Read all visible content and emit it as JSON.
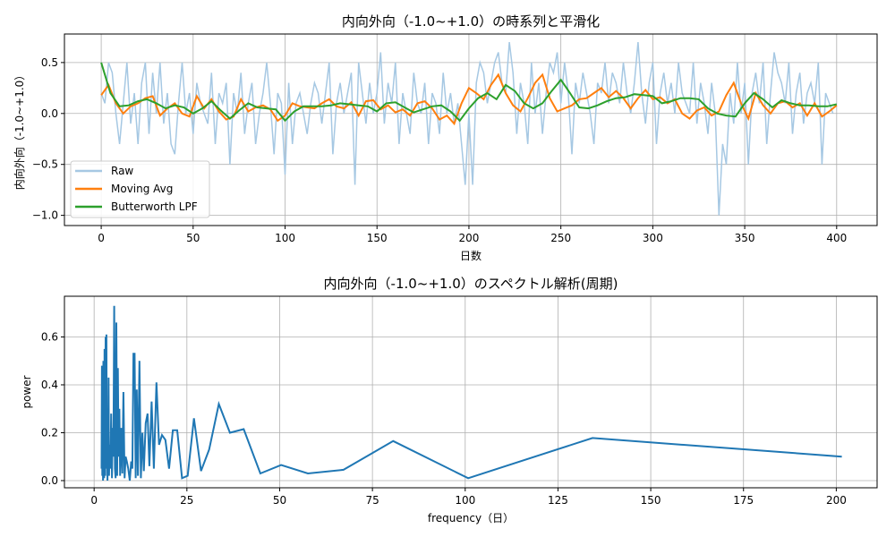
{
  "chart_data": [
    {
      "type": "line",
      "title": "内向外向（-1.0~+1.0）の時系列と平滑化",
      "xlabel": "日数",
      "ylabel": "内向外向（-1.0~+1.0）",
      "xlim": [
        -20,
        422
      ],
      "ylim": [
        -1.1,
        0.78
      ],
      "grid": true,
      "legend": "bottom-left",
      "xticks": [
        0,
        50,
        100,
        150,
        200,
        250,
        300,
        350,
        400
      ],
      "yticks": [
        -1.0,
        -0.5,
        0.0,
        0.5
      ],
      "ytick_labels": [
        "−1.0",
        "−0.5",
        "0.0",
        "0.5"
      ],
      "series": [
        {
          "name": "Raw",
          "color": "#a6c8e3",
          "x_step": 2,
          "values": [
            0.2,
            0.1,
            0.5,
            0.4,
            0.0,
            -0.3,
            0.1,
            0.5,
            -0.1,
            0.2,
            -0.3,
            0.3,
            0.5,
            -0.2,
            0.4,
            0.0,
            0.5,
            -0.1,
            0.2,
            -0.3,
            -0.4,
            0.1,
            0.5,
            0.0,
            0.2,
            -0.2,
            0.3,
            0.1,
            0.0,
            -0.1,
            0.4,
            -0.3,
            0.2,
            0.1,
            0.3,
            -0.5,
            0.2,
            0.0,
            0.4,
            -0.2,
            0.1,
            0.3,
            -0.3,
            0.0,
            0.2,
            0.5,
            0.1,
            -0.4,
            0.2,
            0.1,
            -0.6,
            0.3,
            -0.3,
            0.1,
            0.2,
            0.0,
            -0.2,
            0.1,
            0.3,
            0.2,
            -0.1,
            0.2,
            0.5,
            -0.4,
            0.1,
            0.3,
            0.0,
            0.2,
            0.4,
            -0.7,
            0.5,
            0.2,
            -0.1,
            0.3,
            0.0,
            0.2,
            0.6,
            -0.1,
            0.3,
            0.1,
            0.5,
            -0.3,
            0.2,
            0.0,
            -0.2,
            0.4,
            0.1,
            0.0,
            0.3,
            -0.3,
            0.2,
            0.1,
            -0.2,
            0.4,
            0.0,
            0.2,
            -0.1,
            0.1,
            -0.3,
            -0.7,
            0.0,
            -0.7,
            0.3,
            0.5,
            0.4,
            0.1,
            0.3,
            0.5,
            0.6,
            0.3,
            0.2,
            0.7,
            0.4,
            -0.2,
            0.3,
            0.1,
            -0.3,
            0.5,
            0.0,
            0.3,
            -0.2,
            0.2,
            0.5,
            0.4,
            0.6,
            0.1,
            0.5,
            0.2,
            -0.4,
            0.3,
            0.1,
            0.4,
            0.2,
            0.0,
            -0.3,
            0.3,
            0.2,
            0.5,
            0.1,
            0.4,
            0.3,
            0.1,
            0.5,
            0.2,
            0.0,
            0.3,
            0.7,
            0.2,
            -0.1,
            0.3,
            0.5,
            -0.3,
            0.2,
            0.4,
            0.1,
            0.3,
            0.0,
            0.5,
            0.2,
            0.1,
            0.0,
            0.5,
            -0.1,
            0.3,
            0.1,
            -0.2,
            0.3,
            0.0,
            -1.0,
            -0.3,
            -0.5,
            0.2,
            -0.1,
            0.5,
            0.0,
            0.3,
            -0.5,
            0.2,
            0.4,
            0.1,
            0.5,
            -0.3,
            0.2,
            0.6,
            0.4,
            0.3,
            0.1,
            0.5,
            -0.2,
            0.2,
            0.4,
            -0.1,
            0.2,
            0.3,
            0.1,
            0.5,
            -0.5,
            0.2,
            0.1,
            0.0
          ]
        },
        {
          "name": "Moving Avg",
          "color": "#ff7f0e",
          "x_step": 4,
          "values": [
            0.18,
            0.28,
            0.1,
            0.0,
            0.07,
            0.1,
            0.15,
            0.17,
            -0.02,
            0.05,
            0.1,
            0.0,
            -0.03,
            0.17,
            0.05,
            0.14,
            0.02,
            -0.06,
            -0.03,
            0.14,
            0.02,
            0.06,
            0.08,
            0.04,
            -0.07,
            -0.02,
            0.1,
            0.07,
            0.06,
            0.05,
            0.1,
            0.14,
            0.07,
            0.05,
            0.11,
            -0.02,
            0.12,
            0.13,
            0.04,
            0.08,
            0.01,
            0.04,
            -0.02,
            0.1,
            0.12,
            0.05,
            -0.06,
            -0.02,
            -0.1,
            0.1,
            0.25,
            0.2,
            0.14,
            0.28,
            0.38,
            0.2,
            0.08,
            0.02,
            0.15,
            0.3,
            0.38,
            0.15,
            0.02,
            0.05,
            0.08,
            0.14,
            0.15,
            0.2,
            0.25,
            0.16,
            0.22,
            0.15,
            0.05,
            0.15,
            0.23,
            0.14,
            0.16,
            0.1,
            0.14,
            0.0,
            -0.05,
            0.03,
            0.06,
            -0.02,
            0.02,
            0.18,
            0.3,
            0.1,
            -0.05,
            0.2,
            0.08,
            0.0,
            0.1,
            0.12,
            0.06,
            0.1,
            -0.02,
            0.1,
            -0.03,
            0.02,
            0.08
          ]
        },
        {
          "name": "Butterworth LPF",
          "color": "#2ca02c",
          "x_step": 5,
          "values": [
            0.5,
            0.2,
            0.07,
            0.08,
            0.12,
            0.14,
            0.1,
            0.05,
            0.08,
            0.06,
            0.0,
            0.05,
            0.12,
            0.03,
            -0.05,
            0.03,
            0.1,
            0.06,
            0.05,
            0.04,
            -0.07,
            0.02,
            0.07,
            0.07,
            0.07,
            0.08,
            0.1,
            0.09,
            0.08,
            0.07,
            0.02,
            0.1,
            0.11,
            0.06,
            0.01,
            0.04,
            0.07,
            0.08,
            0.02,
            -0.07,
            0.05,
            0.15,
            0.2,
            0.14,
            0.28,
            0.22,
            0.1,
            0.05,
            0.1,
            0.22,
            0.33,
            0.2,
            0.06,
            0.05,
            0.08,
            0.12,
            0.15,
            0.16,
            0.19,
            0.18,
            0.17,
            0.1,
            0.12,
            0.15,
            0.15,
            0.14,
            0.05,
            0.0,
            -0.02,
            -0.03,
            0.1,
            0.2,
            0.14,
            0.06,
            0.13,
            0.1,
            0.08,
            0.08,
            0.07,
            0.07,
            0.09
          ]
        }
      ]
    },
    {
      "type": "line",
      "title": "内向外向（-1.0~+1.0）のスペクトル解析(周期)",
      "xlabel": "frequency（日）",
      "ylabel": "power",
      "xlim": [
        -8,
        211
      ],
      "ylim": [
        -0.03,
        0.77
      ],
      "grid": true,
      "xticks": [
        0,
        25,
        50,
        75,
        100,
        125,
        150,
        175,
        200
      ],
      "yticks": [
        0.0,
        0.2,
        0.4,
        0.6
      ],
      "ytick_labels": [
        "0.0",
        "0.2",
        "0.4",
        "0.6"
      ],
      "series": [
        {
          "color": "#1f77b4",
          "x": [
            2.0,
            2.1,
            2.2,
            2.3,
            2.4,
            2.5,
            2.6,
            2.7,
            2.8,
            2.9,
            3.0,
            3.1,
            3.2,
            3.3,
            3.4,
            3.5,
            3.6,
            3.7,
            3.8,
            3.9,
            4.0,
            4.2,
            4.4,
            4.6,
            4.8,
            5.0,
            5.2,
            5.4,
            5.6,
            5.8,
            6.0,
            6.2,
            6.4,
            6.6,
            6.8,
            7.0,
            7.3,
            7.6,
            7.9,
            8.2,
            8.5,
            8.8,
            9.2,
            9.6,
            10.0,
            10.3,
            10.6,
            10.9,
            11.2,
            11.5,
            11.8,
            12.2,
            12.6,
            13.0,
            13.4,
            13.9,
            14.4,
            14.9,
            15.5,
            16.1,
            16.8,
            17.5,
            18.3,
            19.2,
            20.2,
            21.2,
            22.4,
            23.7,
            25.2,
            26.9,
            28.8,
            31.0,
            33.6,
            36.6,
            40.3,
            44.8,
            50.4,
            57.6,
            67.2,
            80.6,
            100.8,
            134.3,
            201.5
          ],
          "y": [
            0.05,
            0.48,
            0.02,
            0.45,
            0.0,
            0.5,
            0.1,
            0.01,
            0.55,
            0.3,
            0.02,
            0.6,
            0.05,
            0.61,
            0.12,
            0.3,
            0.0,
            0.22,
            0.05,
            0.43,
            0.02,
            0.15,
            0.05,
            0.28,
            0.01,
            0.22,
            0.1,
            0.73,
            0.05,
            0.01,
            0.66,
            0.02,
            0.47,
            0.1,
            0.3,
            0.02,
            0.22,
            0.03,
            0.37,
            0.01,
            0.1,
            0.08,
            0.05,
            0.0,
            0.08,
            0.05,
            0.53,
            0.53,
            0.01,
            0.38,
            0.02,
            0.5,
            0.01,
            0.2,
            0.04,
            0.24,
            0.28,
            0.06,
            0.33,
            0.05,
            0.41,
            0.15,
            0.19,
            0.17,
            0.05,
            0.21,
            0.21,
            0.01,
            0.02,
            0.26,
            0.04,
            0.13,
            0.32,
            0.2,
            0.215,
            0.03,
            0.065,
            0.03,
            0.045,
            0.165,
            0.01,
            0.178,
            0.1
          ]
        }
      ]
    }
  ]
}
